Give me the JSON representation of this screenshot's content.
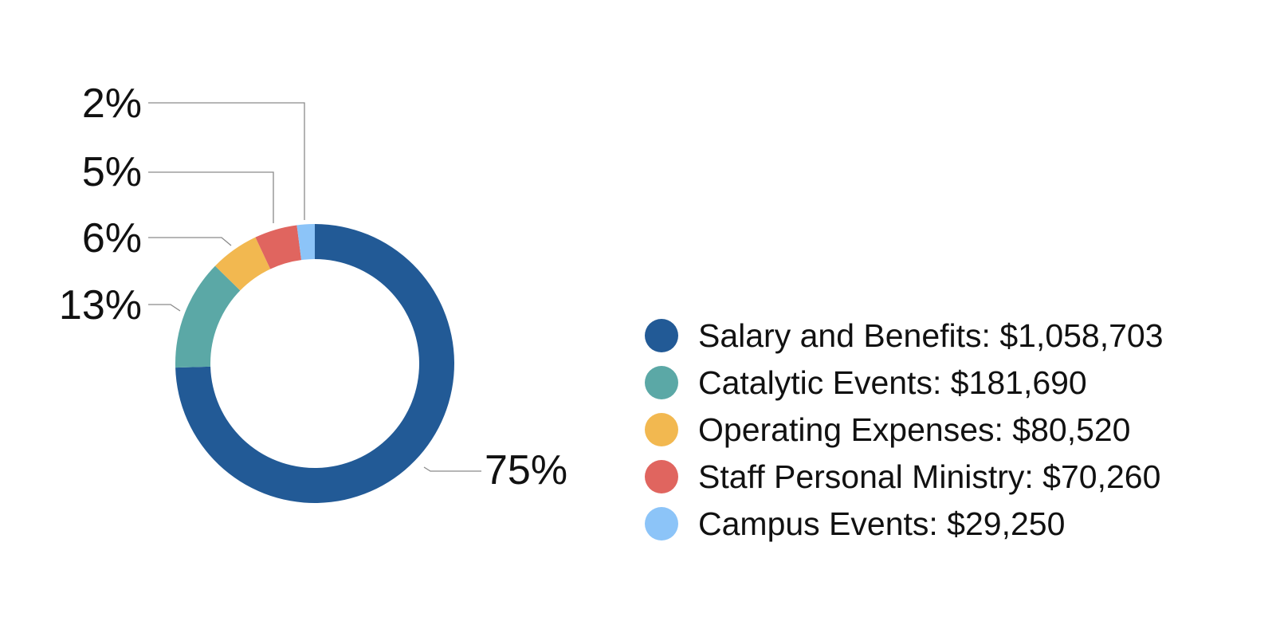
{
  "chart_data": {
    "type": "pie",
    "variant": "donut",
    "legend_position": "right",
    "series": [
      {
        "name": "Salary and Benefits",
        "legend_text": "Salary and Benefits: $1,058,703",
        "amount": 1058703,
        "percent_label": "75%",
        "color": "#225a96"
      },
      {
        "name": "Catalytic Events",
        "legend_text": "Catalytic Events: $181,690",
        "amount": 181690,
        "percent_label": "13%",
        "color": "#5ba8a6"
      },
      {
        "name": "Operating Expenses",
        "legend_text": "Operating Expenses: $80,520",
        "amount": 80520,
        "percent_label": "6%",
        "color": "#f2b850"
      },
      {
        "name": "Staff Personal Ministry",
        "legend_text": "Staff Personal Ministry: $70,260",
        "amount": 70260,
        "percent_label": "5%",
        "color": "#e0655f"
      },
      {
        "name": "Campus Events",
        "legend_text": "Campus Events: $29,250",
        "amount": 29250,
        "percent_label": "2%",
        "color": "#8cc4f8"
      }
    ]
  }
}
